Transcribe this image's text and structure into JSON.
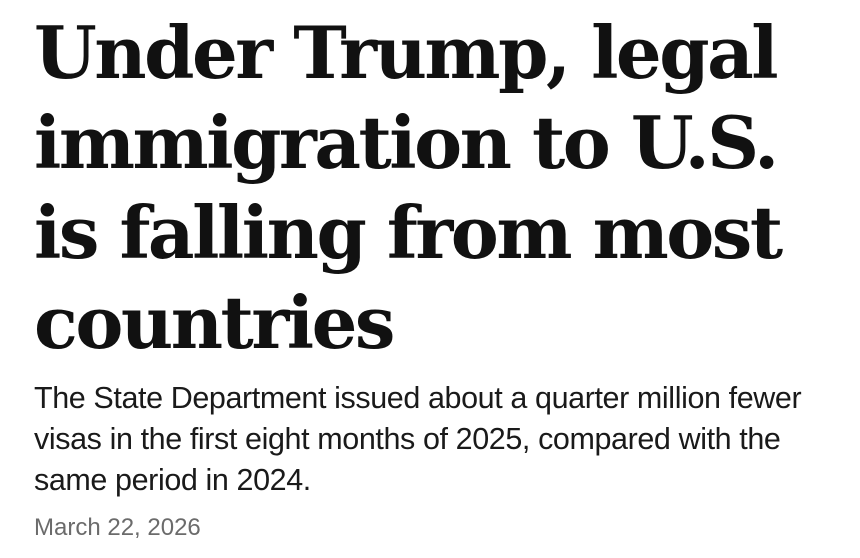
{
  "article": {
    "headline": "Under Trump, legal immigration to U.S. is falling from most countries",
    "dek": "The State Department issued about a quarter million fewer visas in the first eight months of 2025, compared with the same period in 2024.",
    "date": "March 22, 2026"
  }
}
